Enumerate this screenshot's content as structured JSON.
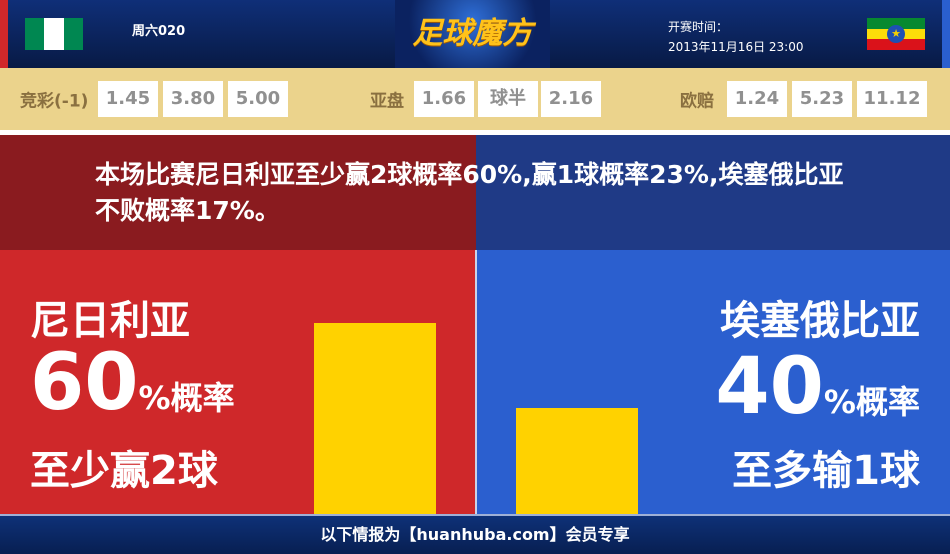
{
  "header": {
    "home_flag": "nigeria-flag",
    "away_flag": "ethiopia-flag",
    "match_no": "周六020",
    "logo": "足球魔方",
    "kickoff_label": "开赛时间：",
    "kickoff_time": "2013年11月16日 23:00"
  },
  "odds": {
    "jingcai": {
      "label": "竞彩(-1)",
      "values": [
        "1.45",
        "3.80",
        "5.00"
      ]
    },
    "asian": {
      "label": "亚盘",
      "values": [
        "1.66",
        "球半",
        "2.16"
      ]
    },
    "euro": {
      "label": "欧赔",
      "values": [
        "1.24",
        "5.23",
        "11.12"
      ]
    }
  },
  "message": "本场比赛尼日利亚至少赢2球概率60%,赢1球概率23%,埃塞俄比亚不败概率17%。",
  "home": {
    "name": "尼日利亚",
    "pct": "60",
    "pct_suffix": "%概率",
    "desc": "至少赢2球",
    "bar_value": 60,
    "color": "#cf282a"
  },
  "away": {
    "name": "埃塞俄比亚",
    "pct": "40",
    "pct_suffix": "%概率",
    "desc": "至多输1球",
    "bar_value": 40,
    "color": "#2b5fcf"
  },
  "bar_color": "#ffd200",
  "footer": "以下情报为【huanhuba.com】会员专享"
}
